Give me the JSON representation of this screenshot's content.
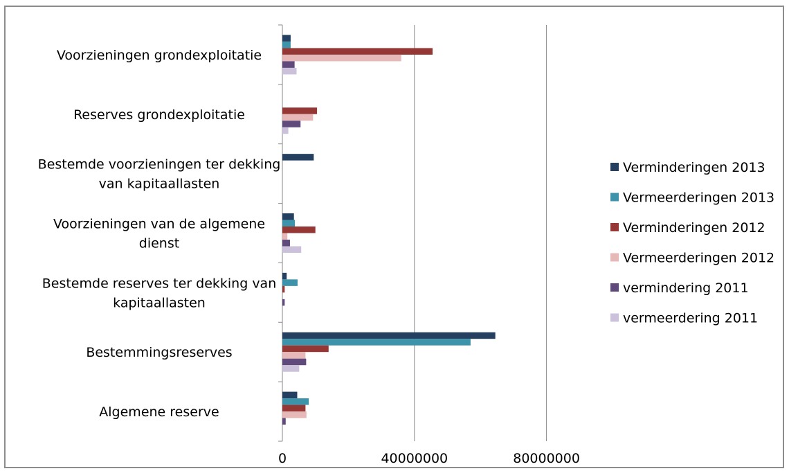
{
  "chart_data": {
    "type": "bar",
    "orientation": "horizontal",
    "categories": [
      "Voorzieningen grondexploitatie",
      "Reserves grondexploitatie",
      "Bestemde voorzieningen ter dekking van kapitaallasten",
      "Voorzieningen van de algemene dienst",
      "Bestemde reserves ter dekking van kapitaallasten",
      "Bestemmingsreserves",
      "Algemene reserve"
    ],
    "category_lines": [
      [
        "Voorzieningen grondexploitatie"
      ],
      [
        "Reserves grondexploitatie"
      ],
      [
        "Bestemde voorzieningen ter dekking",
        "van kapitaallasten"
      ],
      [
        "Voorzieningen van de algemene",
        "dienst"
      ],
      [
        "Bestemde reserves ter dekking van",
        "kapitaallasten"
      ],
      [
        "Bestemmingsreserves"
      ],
      [
        "Algemene reserve"
      ]
    ],
    "series": [
      {
        "name": "Verminderingen 2013",
        "color": "#243f60",
        "values": [
          2500000,
          0,
          9500000,
          3500000,
          1300000,
          64500000,
          4500000
        ]
      },
      {
        "name": "Vermeerderingen 2013",
        "color": "#3c93aa",
        "values": [
          2500000,
          0,
          0,
          3800000,
          4600000,
          57000000,
          8000000
        ]
      },
      {
        "name": "Verminderingen 2012",
        "color": "#953735",
        "values": [
          45500000,
          10500000,
          0,
          10000000,
          700000,
          14000000,
          7000000
        ]
      },
      {
        "name": "Vermeerderingen 2012",
        "color": "#e6b9b8",
        "values": [
          36000000,
          9300000,
          0,
          1500000,
          0,
          7000000,
          7300000
        ]
      },
      {
        "name": "vermindering 2011",
        "color": "#604a7b",
        "values": [
          3700000,
          5500000,
          0,
          2300000,
          700000,
          7200000,
          1000000
        ]
      },
      {
        "name": "vermeerdering 2011",
        "color": "#ccc1da",
        "values": [
          4300000,
          1800000,
          0,
          5700000,
          0,
          5100000,
          0
        ]
      }
    ],
    "xticks": [
      "0",
      "40000000",
      "80000000"
    ],
    "xlim": [
      0,
      120000000
    ],
    "grid": true,
    "legend": "right"
  }
}
